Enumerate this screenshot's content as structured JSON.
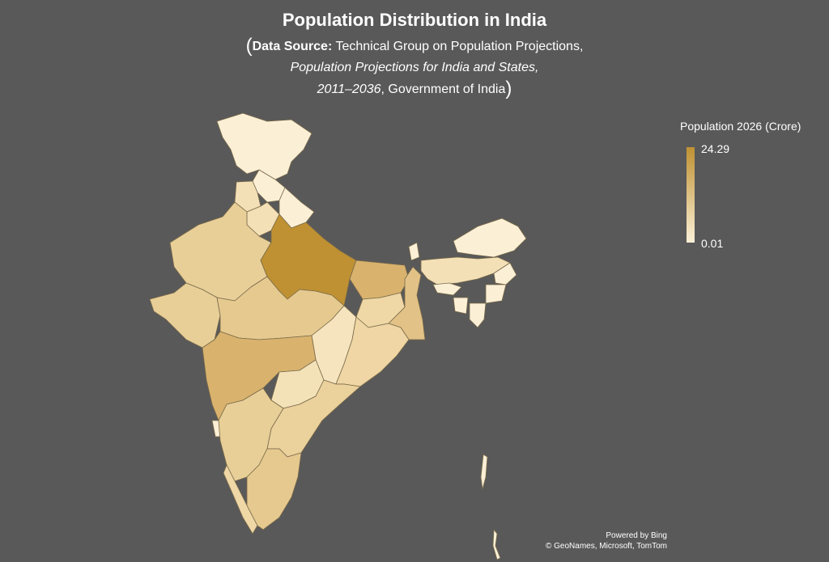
{
  "title": "Population Distribution in India",
  "source": {
    "label": "Data Source:",
    "line1": "Technical Group on Population Projections,",
    "line2": "Population Projections for India and States,",
    "line3_italic": "2011–2036",
    "line3_rest": ", Government of India",
    "open_paren": "(",
    "close_paren": ")"
  },
  "legend": {
    "title": "Population 2026 (Crore)",
    "max": "24.29",
    "min": "0.01",
    "color_max": "#bf9132",
    "color_min": "#fbf0d6"
  },
  "credits": {
    "line1": "Powered by Bing",
    "line2": "© GeoNames, Microsoft, TomTom"
  },
  "colors": {
    "background": "#595959",
    "uttar_pradesh": "#bf9132",
    "high": "#d9b36e",
    "mid": "#e5c98f",
    "low": "#f0dcb0",
    "very_low": "#fbf0d6"
  }
}
